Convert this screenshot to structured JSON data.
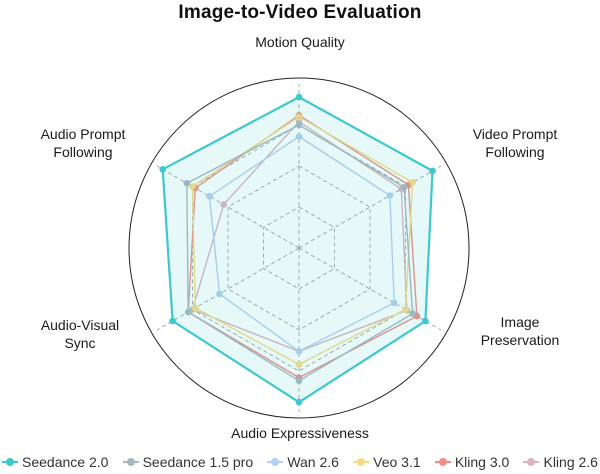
{
  "chart_data": {
    "type": "radar",
    "title": "Image-to-Video Evaluation",
    "axes": [
      "Motion Quality",
      "Video Prompt\nFollowing",
      "Image\nPreservation",
      "Audio Expressiveness",
      "Audio-Visual\nSync",
      "Audio Prompt\nFollowing"
    ],
    "range": [
      0,
      100
    ],
    "grid_levels": [
      25,
      50,
      75
    ],
    "series": [
      {
        "name": "Seedance 2.0",
        "color": "#3cc8cc",
        "values": [
          92,
          94,
          89,
          94,
          89,
          96
        ]
      },
      {
        "name": "Seedance 1.5 pro",
        "color": "#a6b8bf",
        "values": [
          75,
          74,
          80,
          81,
          78,
          79
        ]
      },
      {
        "name": "Wan 2.6",
        "color": "#b4d0f0",
        "values": [
          68,
          64,
          67,
          63,
          56,
          63
        ]
      },
      {
        "name": "Veo 3.1",
        "color": "#f5dc82",
        "values": [
          80,
          80,
          75,
          71,
          73,
          75
        ]
      },
      {
        "name": "Kling 3.0",
        "color": "#ef8e88",
        "values": [
          81,
          77,
          83,
          79,
          78,
          73
        ]
      },
      {
        "name": "Kling 2.6",
        "color": "#dcb4c0",
        "values": [
          77,
          72,
          76,
          63,
          75,
          53
        ]
      }
    ]
  }
}
